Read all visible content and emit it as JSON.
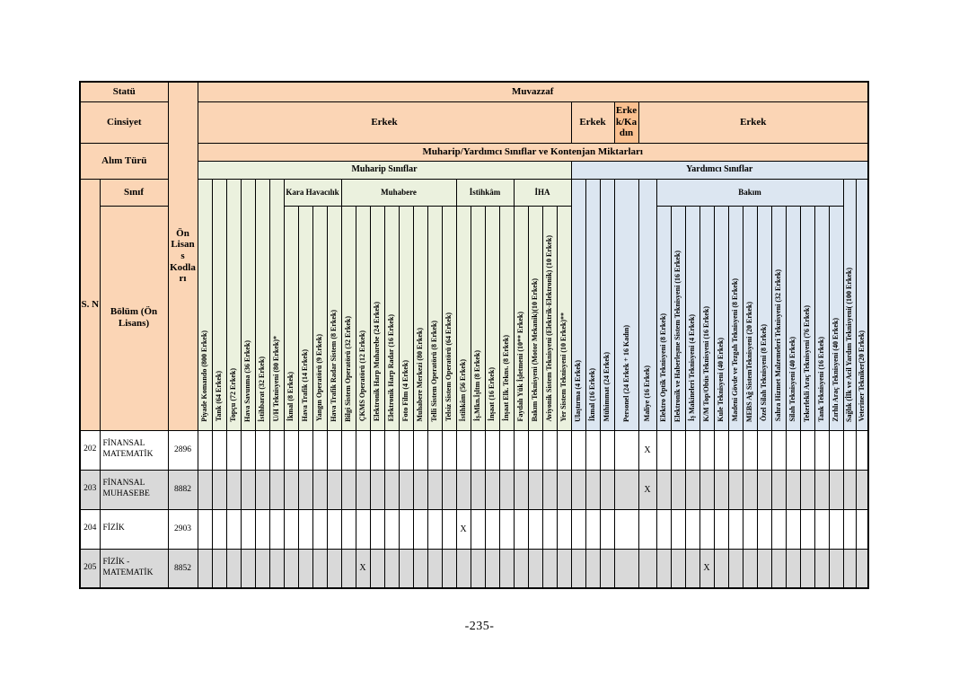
{
  "page": {
    "footer": "-235-"
  },
  "colors": {
    "header-orange": "#FBD5B5",
    "header-orange-dark": "#FAC090",
    "muharip-green": "#EBF1DE",
    "yardimci-blue": "#DCE6F1",
    "row-gray": "#D9D9D9",
    "border": "#000000"
  },
  "table": {
    "left_headers": {
      "statu": "Statü",
      "cinsiyet": "Cinsiyet",
      "alim_turu": "Alım Türü",
      "sinif": "Sınıf",
      "sn": "S. N",
      "bolum": "Bölüm (Ön Lisans)",
      "on_lisans": "Ön Lisans Kodları"
    },
    "top_headers": {
      "muvazzaf": "Muvazzaf",
      "kontenjan": "Muharip/Yardımcı Sınıflar ve Kontenjan Miktarları",
      "muharip": "Muharip Sınıflar",
      "yardimci": "Yardımcı Sınıflar",
      "genders": [
        {
          "label": "Erkek",
          "span": 26,
          "highlight": false
        },
        {
          "label": "Erkek",
          "span": 3,
          "highlight": false
        },
        {
          "label": "Erkek/Kadın",
          "span": 1,
          "highlight": true
        },
        {
          "label": "Erkek",
          "span": 16,
          "highlight": false
        }
      ]
    },
    "columns": [
      {
        "label": "Piyade Komando (800 Erkek)",
        "section": "muharip"
      },
      {
        "label": "Tank (64 Erkek)",
        "section": "muharip"
      },
      {
        "label": "Topçu (72 Erkek)",
        "section": "muharip"
      },
      {
        "label": "Hava Savunma (36 Erkek)",
        "section": "muharip"
      },
      {
        "label": "İstihbarat (32 Erkek)",
        "section": "muharip"
      },
      {
        "label": "U/H Teknisyeni  (80 Erkek)*",
        "section": "muharip"
      },
      {
        "label": "İkmal  (8 Erkek)",
        "section": "muharip"
      },
      {
        "label": "Hava Trafik  (14 Erkek)",
        "section": "muharip"
      },
      {
        "label": "Yangın Operatörü  (9 Erkek)",
        "section": "muharip"
      },
      {
        "label": "Hava Trafik Radar Sistem (8 Erkek)",
        "section": "muharip"
      },
      {
        "label": "Bilgi Sistem Operatörü  (32 Erkek)",
        "section": "muharip"
      },
      {
        "label": "ÇKMS Operatörü (12 Erkek)",
        "section": "muharip"
      },
      {
        "label": "Elektronik Harp Muharebe (24 Erkek)",
        "section": "muharip"
      },
      {
        "label": "Elektronik Harp Radar  (16 Erkek)",
        "section": "muharip"
      },
      {
        "label": "Foto Film (4 Erkek)",
        "section": "muharip"
      },
      {
        "label": "Muhabere Merkezi (80 Erkek)",
        "section": "muharip"
      },
      {
        "label": "Telli Sistem Operatörü (8 Erkek)",
        "section": "muharip"
      },
      {
        "label": "Telsiz Sistem Operatörü (64 Erkek)",
        "section": "muharip"
      },
      {
        "label": "İstihkâm (56 Erkek)",
        "section": "muharip"
      },
      {
        "label": "İş.Mkn.İşltm (8 Erkek)",
        "section": "muharip"
      },
      {
        "label": "İnşaat  (16 Erkek)",
        "section": "muharip"
      },
      {
        "label": "İnşaat Elk. Tekns. (8 Erkek)",
        "section": "muharip"
      },
      {
        "label": "Faydalı Yük İşletmeni (10** Erkek)",
        "section": "muharip"
      },
      {
        "label": "Bakım Teknisyeni (Motor  Mekanik)(10 Erkek)",
        "section": "muharip"
      },
      {
        "label": "Aviyonik Sistem Teknisyeni (Elektrik-Elektronik) (10 Erkek)",
        "section": "muharip"
      },
      {
        "label": "Yer Sistem Teknisyeni (10 Erkek)**",
        "section": "muharip"
      },
      {
        "label": "Ulaştırma  (4 Erkek)",
        "section": "yardimci"
      },
      {
        "label": "İkmal   (16 Erkek)",
        "section": "yardimci"
      },
      {
        "label": "Mühimmat  (24 Erkek)",
        "section": "yardimci"
      },
      {
        "label": "Personel  (24 Erkek + 16 Kadın)",
        "section": "yardimci"
      },
      {
        "label": "Maliye  (16 Erkek)",
        "section": "yardimci"
      },
      {
        "label": "Elektro Optik Teknisyeni   (8 Erkek)",
        "section": "yardimci"
      },
      {
        "label": "Elektronik ve Haberleşme Sistem Teknisyeni (16 Erkek)",
        "section": "yardimci"
      },
      {
        "label": "İş Makineleri Teknisyeni (4 Erkek)",
        "section": "yardimci"
      },
      {
        "label": "K/M Top/Obüs  Teknisyeni (16 Erkek)",
        "section": "yardimci"
      },
      {
        "label": "Kule Teknisyeni (40 Erkek)",
        "section": "yardimci"
      },
      {
        "label": "Madeni Gövde ve Tezgah Teknisyeni  (8 Erkek)",
        "section": "yardimci"
      },
      {
        "label": "MEBS Ağ SistemTeknisyeni (20 Erkek)",
        "section": "yardimci"
      },
      {
        "label": "Özel Silah Teknisyeni (8 Erkek)",
        "section": "yardimci"
      },
      {
        "label": "Sahra Hizmet  Malzemeleri Teknisyeni  (32 Erkek)",
        "section": "yardimci"
      },
      {
        "label": "Silah Teknisyeni  (40 Erkek)",
        "section": "yardimci"
      },
      {
        "label": "Tekerlekli Araç Teknisyeni  (76 Erkek)",
        "section": "yardimci"
      },
      {
        "label": "Tank Teknisyeni   (16 Erkek)",
        "section": "yardimci"
      },
      {
        "label": "Zırhlı Araç Teknisyeni  (40 Erkek)",
        "section": "yardimci"
      },
      {
        "label": "Sağlık (İlk ve Acil Yardım Teknisyeni( (100 Erkek)",
        "section": "yardimci"
      },
      {
        "label": "Veteriner Tekniker(20 Erkek)",
        "section": "yardimci"
      }
    ],
    "column_groups": [
      {
        "label": null,
        "columns": [
          0,
          1,
          2,
          3,
          4,
          5
        ]
      },
      {
        "label": "Kara Havacılık",
        "columns": [
          6,
          7,
          8,
          9
        ]
      },
      {
        "label": "Muhabere",
        "columns": [
          10,
          11,
          12,
          13,
          14,
          15,
          16,
          17
        ]
      },
      {
        "label": "İstihkâm",
        "columns": [
          18,
          19,
          20,
          21
        ]
      },
      {
        "label": "İHA",
        "columns": [
          22,
          23,
          24,
          25
        ]
      },
      {
        "label": null,
        "columns": [
          26,
          27,
          28,
          29,
          30
        ]
      },
      {
        "label": "Bakım",
        "columns": [
          31,
          32,
          33,
          34,
          35,
          36,
          37,
          38,
          39,
          40,
          41,
          42,
          43
        ]
      },
      {
        "label": null,
        "columns": [
          44,
          45
        ]
      }
    ],
    "rows": [
      {
        "sn": "202",
        "bolum": "FİNANSAL MATEMATİK",
        "kod": "2896",
        "shaded": false,
        "marks": {
          "30": "X"
        }
      },
      {
        "sn": "203",
        "bolum": "FİNANSAL MUHASEBE",
        "kod": "8882",
        "shaded": true,
        "marks": {
          "30": "X"
        }
      },
      {
        "sn": "204",
        "bolum": "FİZİK",
        "kod": "2903",
        "shaded": false,
        "marks": {
          "18": "X"
        }
      },
      {
        "sn": "205",
        "bolum": "FİZİK - MATEMATİK",
        "kod": "8852",
        "shaded": true,
        "marks": {
          "11": "X",
          "34": "X"
        }
      }
    ]
  }
}
